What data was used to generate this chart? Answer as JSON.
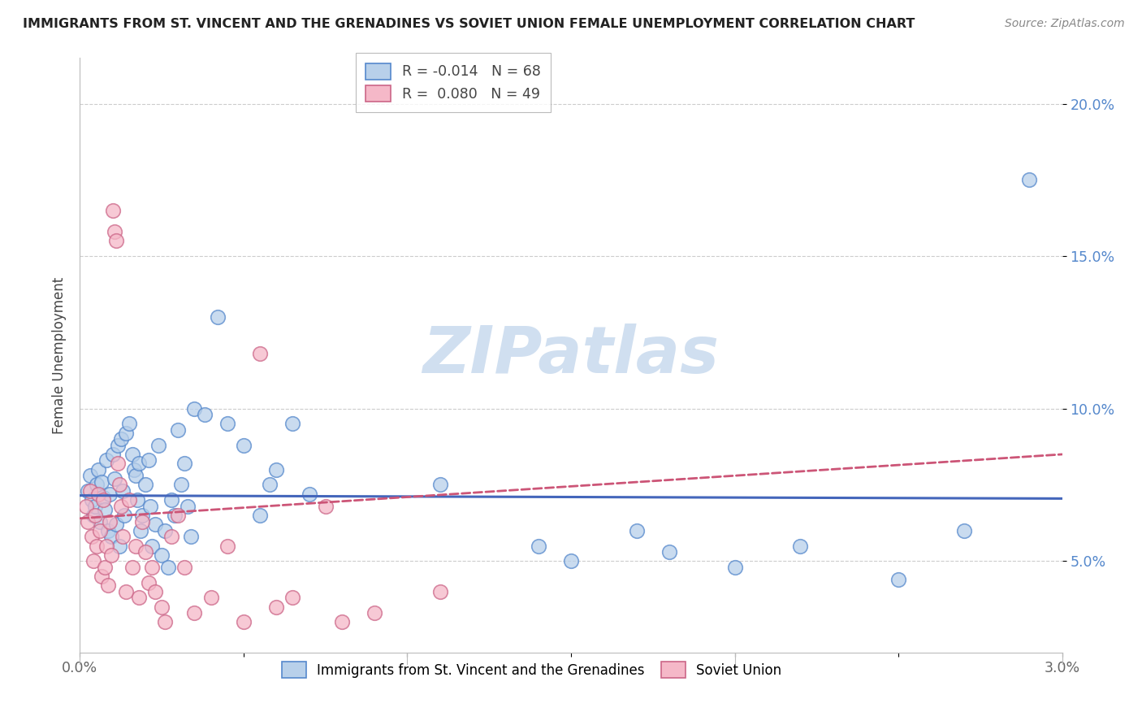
{
  "title": "IMMIGRANTS FROM ST. VINCENT AND THE GRENADINES VS SOVIET UNION FEMALE UNEMPLOYMENT CORRELATION CHART",
  "source": "Source: ZipAtlas.com",
  "ylabel": "Female Unemployment",
  "y_ticks": [
    0.05,
    0.1,
    0.15,
    0.2
  ],
  "y_tick_labels": [
    "5.0%",
    "10.0%",
    "15.0%",
    "20.0%"
  ],
  "x_tick_labels": [
    "0.0%",
    "",
    "",
    "",
    "",
    "",
    "3.0%"
  ],
  "x_ticks": [
    0.0,
    0.005,
    0.01,
    0.015,
    0.02,
    0.025,
    0.03
  ],
  "xlim": [
    0.0,
    0.03
  ],
  "ylim": [
    0.02,
    0.215
  ],
  "legend_r1": "R = -0.014",
  "legend_n1": "N = 68",
  "legend_r2": "R =  0.080",
  "legend_n2": "N = 49",
  "series1_face": "#b8d0ea",
  "series1_edge": "#5588cc",
  "series2_face": "#f5b8c8",
  "series2_edge": "#cc6688",
  "trend1_color": "#4466bb",
  "trend2_color": "#cc5577",
  "watermark": "ZIPatlas",
  "watermark_color": "#d0dff0",
  "grid_color": "#cccccc",
  "bg_color": "#ffffff",
  "title_color": "#222222",
  "ylabel_color": "#444444",
  "right_tick_color": "#5588cc",
  "legend_label1": "Immigrants from St. Vincent and the Grenadines",
  "legend_label2": "Soviet Union",
  "scatter1_x": [
    0.00025,
    0.0003,
    0.00035,
    0.0004,
    0.00045,
    0.0005,
    0.00055,
    0.0006,
    0.00065,
    0.0007,
    0.00075,
    0.0008,
    0.00085,
    0.0009,
    0.00095,
    0.001,
    0.00105,
    0.0011,
    0.00115,
    0.0012,
    0.00125,
    0.0013,
    0.00135,
    0.0014,
    0.0015,
    0.0016,
    0.00165,
    0.0017,
    0.00175,
    0.0018,
    0.00185,
    0.0019,
    0.002,
    0.0021,
    0.00215,
    0.0022,
    0.0023,
    0.0024,
    0.0025,
    0.0026,
    0.0027,
    0.0028,
    0.0029,
    0.003,
    0.0031,
    0.0032,
    0.0033,
    0.0034,
    0.0035,
    0.0038,
    0.0042,
    0.0045,
    0.005,
    0.0055,
    0.0058,
    0.006,
    0.0065,
    0.007,
    0.011,
    0.014,
    0.015,
    0.017,
    0.018,
    0.02,
    0.022,
    0.025,
    0.027,
    0.029
  ],
  "scatter1_y": [
    0.073,
    0.078,
    0.07,
    0.065,
    0.068,
    0.075,
    0.08,
    0.063,
    0.076,
    0.071,
    0.067,
    0.083,
    0.06,
    0.072,
    0.058,
    0.085,
    0.077,
    0.062,
    0.088,
    0.055,
    0.09,
    0.073,
    0.065,
    0.092,
    0.095,
    0.085,
    0.08,
    0.078,
    0.07,
    0.082,
    0.06,
    0.065,
    0.075,
    0.083,
    0.068,
    0.055,
    0.062,
    0.088,
    0.052,
    0.06,
    0.048,
    0.07,
    0.065,
    0.093,
    0.075,
    0.082,
    0.068,
    0.058,
    0.1,
    0.098,
    0.13,
    0.095,
    0.088,
    0.065,
    0.075,
    0.08,
    0.095,
    0.072,
    0.075,
    0.055,
    0.05,
    0.06,
    0.053,
    0.048,
    0.055,
    0.044,
    0.06,
    0.175
  ],
  "scatter2_x": [
    0.0002,
    0.00025,
    0.0003,
    0.00035,
    0.0004,
    0.00045,
    0.0005,
    0.00055,
    0.0006,
    0.00065,
    0.0007,
    0.00075,
    0.0008,
    0.00085,
    0.0009,
    0.00095,
    0.001,
    0.00105,
    0.0011,
    0.00115,
    0.0012,
    0.00125,
    0.0013,
    0.0014,
    0.0015,
    0.0016,
    0.0017,
    0.0018,
    0.0019,
    0.002,
    0.0021,
    0.0022,
    0.0023,
    0.0025,
    0.0026,
    0.0028,
    0.003,
    0.0032,
    0.0035,
    0.004,
    0.0045,
    0.005,
    0.0055,
    0.006,
    0.0065,
    0.0075,
    0.008,
    0.009,
    0.011
  ],
  "scatter2_y": [
    0.068,
    0.063,
    0.073,
    0.058,
    0.05,
    0.065,
    0.055,
    0.072,
    0.06,
    0.045,
    0.07,
    0.048,
    0.055,
    0.042,
    0.063,
    0.052,
    0.165,
    0.158,
    0.155,
    0.082,
    0.075,
    0.068,
    0.058,
    0.04,
    0.07,
    0.048,
    0.055,
    0.038,
    0.063,
    0.053,
    0.043,
    0.048,
    0.04,
    0.035,
    0.03,
    0.058,
    0.065,
    0.048,
    0.033,
    0.038,
    0.055,
    0.03,
    0.118,
    0.035,
    0.038,
    0.068,
    0.03,
    0.033,
    0.04
  ],
  "trend1_x": [
    0.0,
    0.03
  ],
  "trend1_y": [
    0.0715,
    0.0705
  ],
  "trend2_x": [
    0.0,
    0.03
  ],
  "trend2_y": [
    0.064,
    0.085
  ]
}
